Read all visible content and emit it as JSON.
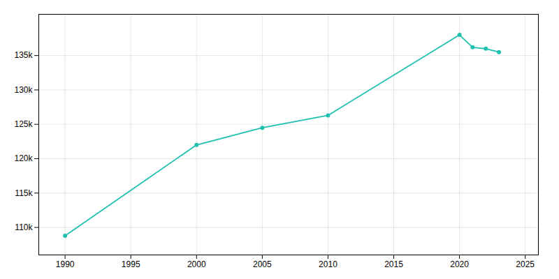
{
  "chart_data": {
    "type": "line",
    "x": [
      1990,
      2000,
      2005,
      2010,
      2020,
      2021,
      2022,
      2023
    ],
    "values": [
      108800,
      122000,
      124500,
      126300,
      138000,
      136200,
      136000,
      135500
    ],
    "color": "#20C0B0",
    "marker": "circle",
    "xlim": [
      1988,
      2026
    ],
    "xticks": [
      1990,
      1995,
      2000,
      2005,
      2010,
      2015,
      2020,
      2025
    ],
    "ylim": [
      106000,
      141000
    ],
    "yticks": [
      {
        "value": 110000,
        "label": "110k"
      },
      {
        "value": 115000,
        "label": "115k"
      },
      {
        "value": 120000,
        "label": "120k"
      },
      {
        "value": 125000,
        "label": "125k"
      },
      {
        "value": 130000,
        "label": "130k"
      },
      {
        "value": 135000,
        "label": "135k"
      }
    ],
    "grid": true
  }
}
